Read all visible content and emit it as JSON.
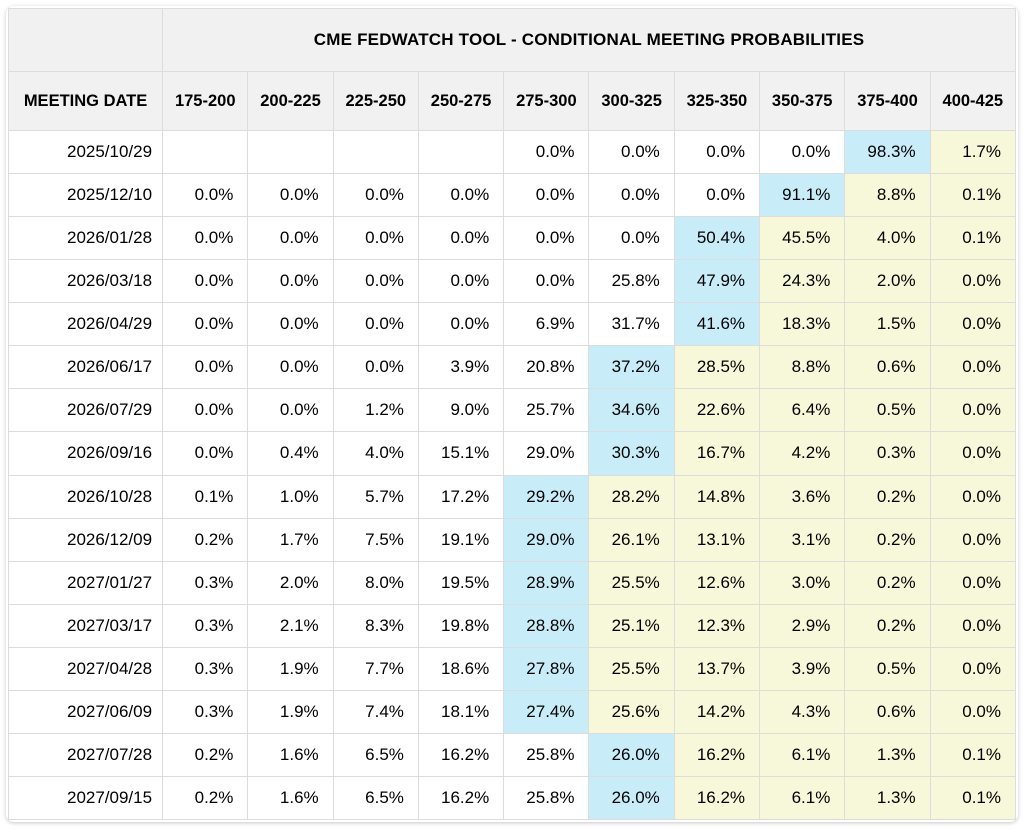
{
  "title": "CME FEDWATCH TOOL - CONDITIONAL MEETING PROBABILITIES",
  "colors": {
    "blue_highlight": "#c8edf8",
    "yellow_highlight": "#f7f7d9",
    "header_bg": "#f1f1f1",
    "grid_border": "#dcdcdc"
  },
  "chart_data": {
    "type": "table",
    "title": "CME FEDWATCH TOOL - CONDITIONAL MEETING PROBABILITIES",
    "row_header": "MEETING DATE",
    "columns": [
      "175-200",
      "200-225",
      "225-250",
      "250-275",
      "275-300",
      "300-325",
      "325-350",
      "350-375",
      "375-400",
      "400-425"
    ],
    "highlight_note": "blue_index marks the light-blue highlighted cell in each row; all cells to its right are pale yellow",
    "rows": [
      {
        "date": "2025/10/29",
        "values": [
          "",
          "",
          "",
          "",
          "0.0%",
          "0.0%",
          "0.0%",
          "0.0%",
          "98.3%",
          "1.7%"
        ],
        "blue_index": 8
      },
      {
        "date": "2025/12/10",
        "values": [
          "0.0%",
          "0.0%",
          "0.0%",
          "0.0%",
          "0.0%",
          "0.0%",
          "0.0%",
          "91.1%",
          "8.8%",
          "0.1%"
        ],
        "blue_index": 7
      },
      {
        "date": "2026/01/28",
        "values": [
          "0.0%",
          "0.0%",
          "0.0%",
          "0.0%",
          "0.0%",
          "0.0%",
          "50.4%",
          "45.5%",
          "4.0%",
          "0.1%"
        ],
        "blue_index": 6
      },
      {
        "date": "2026/03/18",
        "values": [
          "0.0%",
          "0.0%",
          "0.0%",
          "0.0%",
          "0.0%",
          "25.8%",
          "47.9%",
          "24.3%",
          "2.0%",
          "0.0%"
        ],
        "blue_index": 6
      },
      {
        "date": "2026/04/29",
        "values": [
          "0.0%",
          "0.0%",
          "0.0%",
          "0.0%",
          "6.9%",
          "31.7%",
          "41.6%",
          "18.3%",
          "1.5%",
          "0.0%"
        ],
        "blue_index": 6
      },
      {
        "date": "2026/06/17",
        "values": [
          "0.0%",
          "0.0%",
          "0.0%",
          "3.9%",
          "20.8%",
          "37.2%",
          "28.5%",
          "8.8%",
          "0.6%",
          "0.0%"
        ],
        "blue_index": 5
      },
      {
        "date": "2026/07/29",
        "values": [
          "0.0%",
          "0.0%",
          "1.2%",
          "9.0%",
          "25.7%",
          "34.6%",
          "22.6%",
          "6.4%",
          "0.5%",
          "0.0%"
        ],
        "blue_index": 5
      },
      {
        "date": "2026/09/16",
        "values": [
          "0.0%",
          "0.4%",
          "4.0%",
          "15.1%",
          "29.0%",
          "30.3%",
          "16.7%",
          "4.2%",
          "0.3%",
          "0.0%"
        ],
        "blue_index": 5
      },
      {
        "date": "2026/10/28",
        "values": [
          "0.1%",
          "1.0%",
          "5.7%",
          "17.2%",
          "29.2%",
          "28.2%",
          "14.8%",
          "3.6%",
          "0.2%",
          "0.0%"
        ],
        "blue_index": 4
      },
      {
        "date": "2026/12/09",
        "values": [
          "0.2%",
          "1.7%",
          "7.5%",
          "19.1%",
          "29.0%",
          "26.1%",
          "13.1%",
          "3.1%",
          "0.2%",
          "0.0%"
        ],
        "blue_index": 4
      },
      {
        "date": "2027/01/27",
        "values": [
          "0.3%",
          "2.0%",
          "8.0%",
          "19.5%",
          "28.9%",
          "25.5%",
          "12.6%",
          "3.0%",
          "0.2%",
          "0.0%"
        ],
        "blue_index": 4
      },
      {
        "date": "2027/03/17",
        "values": [
          "0.3%",
          "2.1%",
          "8.3%",
          "19.8%",
          "28.8%",
          "25.1%",
          "12.3%",
          "2.9%",
          "0.2%",
          "0.0%"
        ],
        "blue_index": 4
      },
      {
        "date": "2027/04/28",
        "values": [
          "0.3%",
          "1.9%",
          "7.7%",
          "18.6%",
          "27.8%",
          "25.5%",
          "13.7%",
          "3.9%",
          "0.5%",
          "0.0%"
        ],
        "blue_index": 4
      },
      {
        "date": "2027/06/09",
        "values": [
          "0.3%",
          "1.9%",
          "7.4%",
          "18.1%",
          "27.4%",
          "25.6%",
          "14.2%",
          "4.3%",
          "0.6%",
          "0.0%"
        ],
        "blue_index": 4
      },
      {
        "date": "2027/07/28",
        "values": [
          "0.2%",
          "1.6%",
          "6.5%",
          "16.2%",
          "25.8%",
          "26.0%",
          "16.2%",
          "6.1%",
          "1.3%",
          "0.1%"
        ],
        "blue_index": 5
      },
      {
        "date": "2027/09/15",
        "values": [
          "0.2%",
          "1.6%",
          "6.5%",
          "16.2%",
          "25.8%",
          "26.0%",
          "16.2%",
          "6.1%",
          "1.3%",
          "0.1%"
        ],
        "blue_index": 5
      }
    ]
  }
}
